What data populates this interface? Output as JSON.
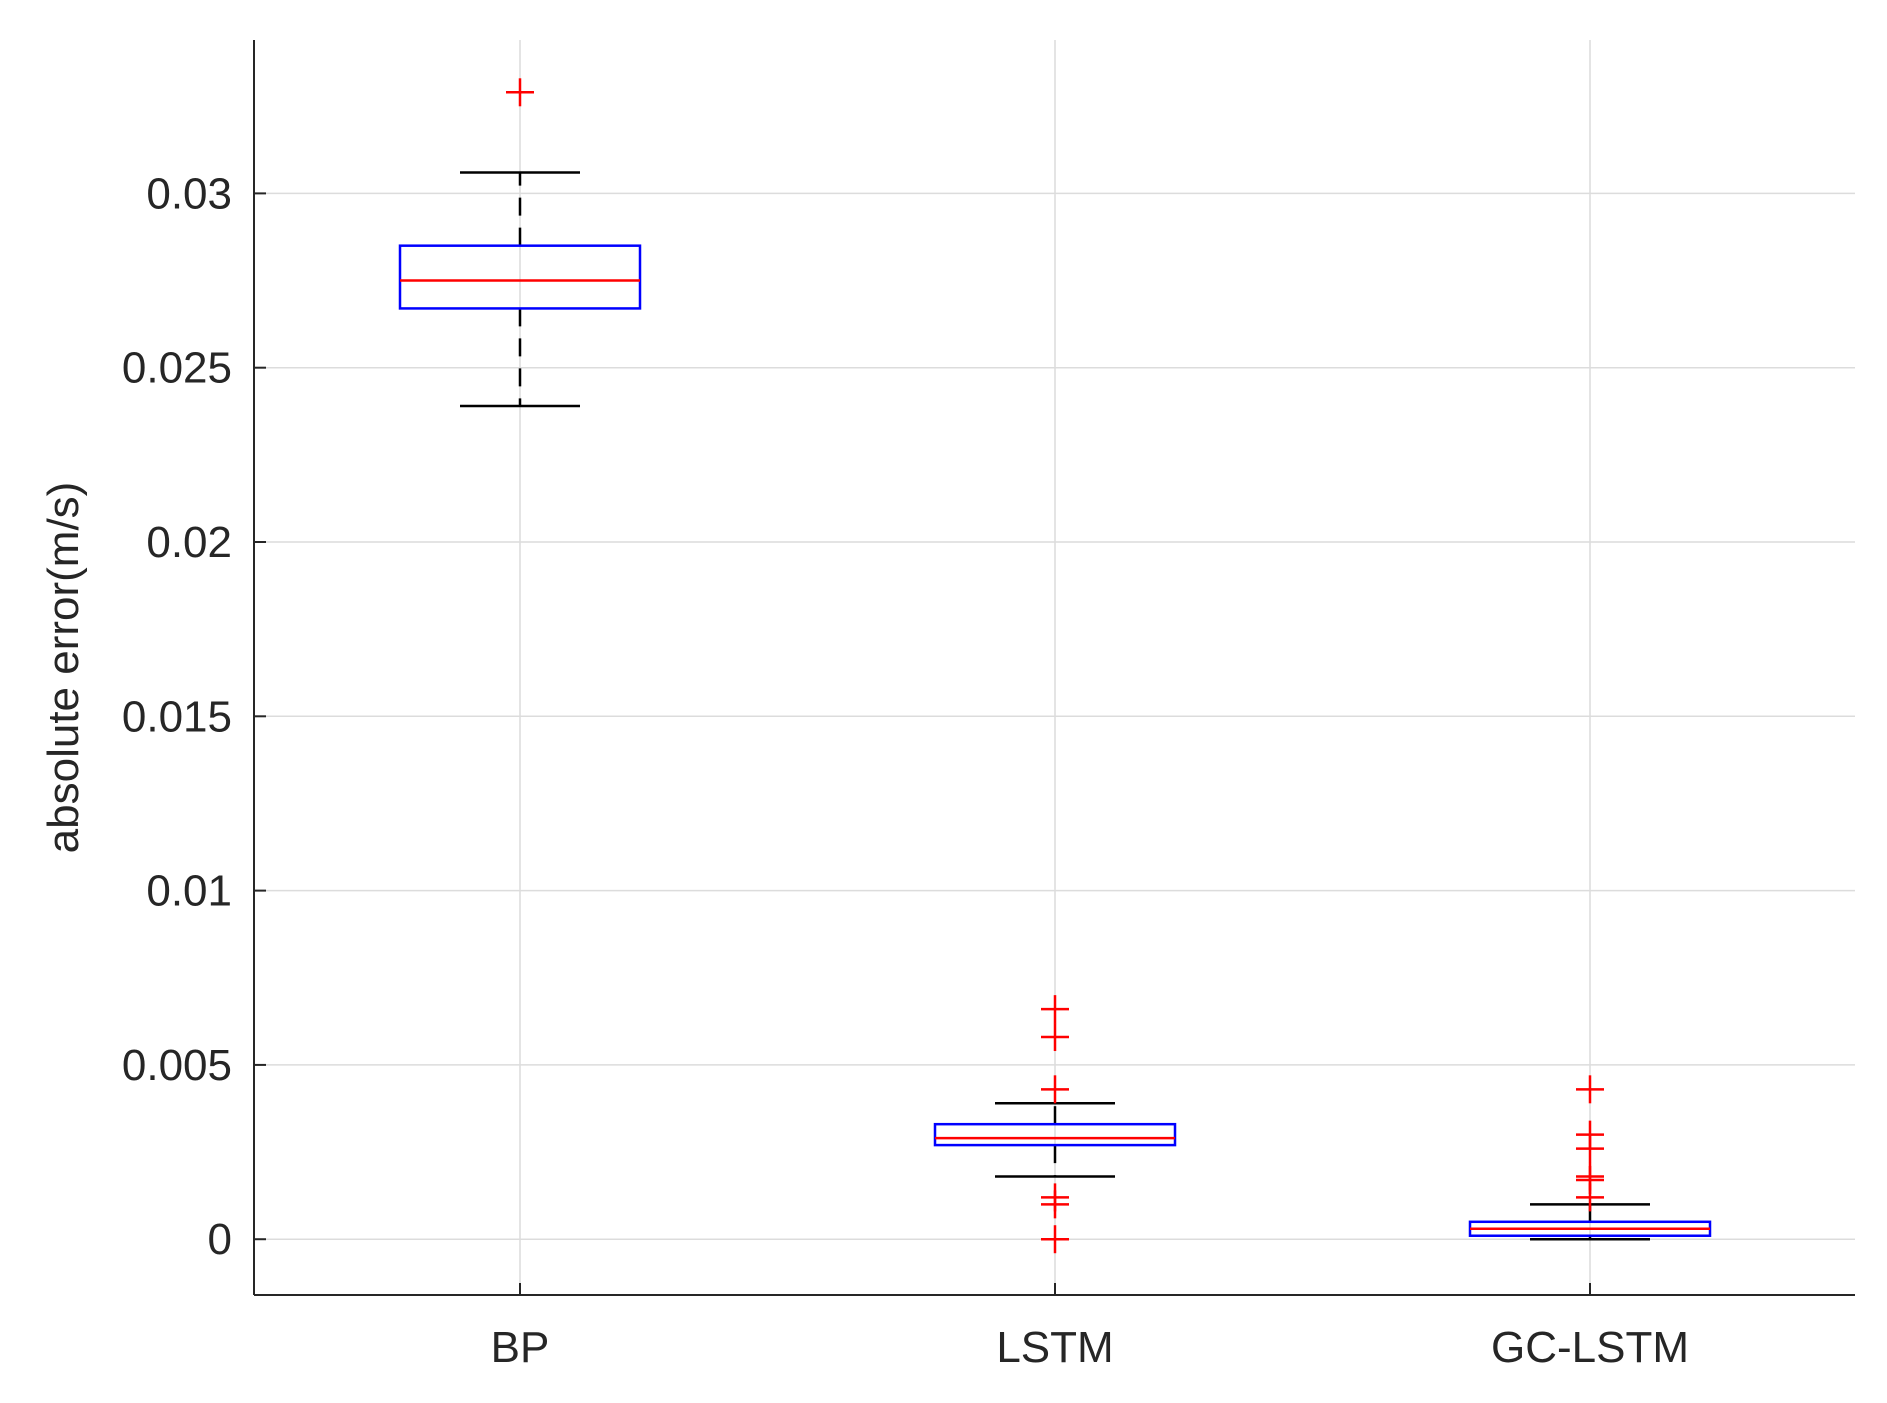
{
  "chart_data": {
    "type": "box",
    "title": "",
    "xlabel": "",
    "ylabel": "absolute error(m/s)",
    "categories": [
      "BP",
      "LSTM",
      "GC-LSTM"
    ],
    "ylim": [
      -0.0016,
      0.0344
    ],
    "yticks": [
      0,
      0.005,
      0.01,
      0.015,
      0.02,
      0.025,
      0.03
    ],
    "ytick_labels": [
      "0",
      "0.005",
      "0.01",
      "0.015",
      "0.02",
      "0.025",
      "0.03"
    ],
    "grid": true,
    "boxes": [
      {
        "category": "BP",
        "whisker_low": 0.0239,
        "q1": 0.0267,
        "median": 0.0275,
        "q3": 0.0285,
        "whisker_high": 0.0306,
        "outliers": [
          0.0329
        ]
      },
      {
        "category": "LSTM",
        "whisker_low": 0.0018,
        "q1": 0.0027,
        "median": 0.0029,
        "q3": 0.0033,
        "whisker_high": 0.0039,
        "outliers": [
          0.0,
          0.001,
          0.0012,
          0.0043,
          0.0058,
          0.0066
        ]
      },
      {
        "category": "GC-LSTM",
        "whisker_low": 0.0,
        "q1": 0.0001,
        "median": 0.0003,
        "q3": 0.0005,
        "whisker_high": 0.001,
        "outliers": [
          0.0012,
          0.0017,
          0.0018,
          0.0026,
          0.003,
          0.0043
        ]
      }
    ],
    "colors": {
      "box": "#0000ff",
      "median": "#ff0000",
      "whisker": "#000000",
      "outlier": "#ff0000",
      "grid": "#dcdcdc",
      "axis": "#262626"
    }
  }
}
